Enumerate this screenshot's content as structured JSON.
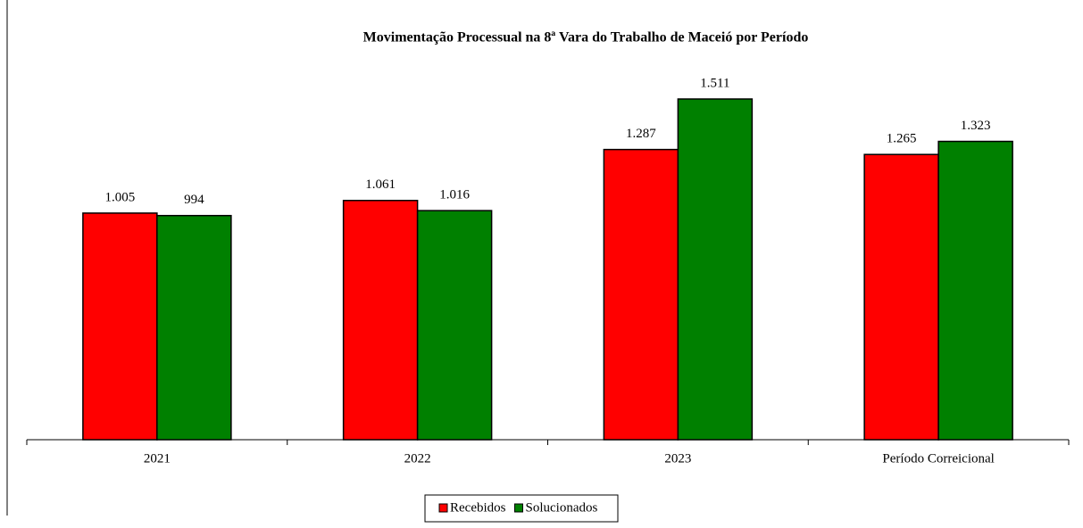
{
  "chart_data": {
    "type": "bar",
    "title": "Movimentação Processual na 8ª Vara do Trabalho de Maceió por Período",
    "categories": [
      "2021",
      "2022",
      "2023",
      "Período Correicional"
    ],
    "series": [
      {
        "name": "Recebidos",
        "color": "#ff0000",
        "values": [
          1005,
          1061,
          1287,
          1265
        ],
        "value_labels": [
          "1.005",
          "1.061",
          "1.287",
          "1.265"
        ]
      },
      {
        "name": "Solucionados",
        "color": "#008000",
        "values": [
          994,
          1016,
          1511,
          1323
        ],
        "value_labels": [
          "994",
          "1.016",
          "1.511",
          "1.323"
        ]
      }
    ],
    "ylim": [
      0,
      1600
    ]
  }
}
